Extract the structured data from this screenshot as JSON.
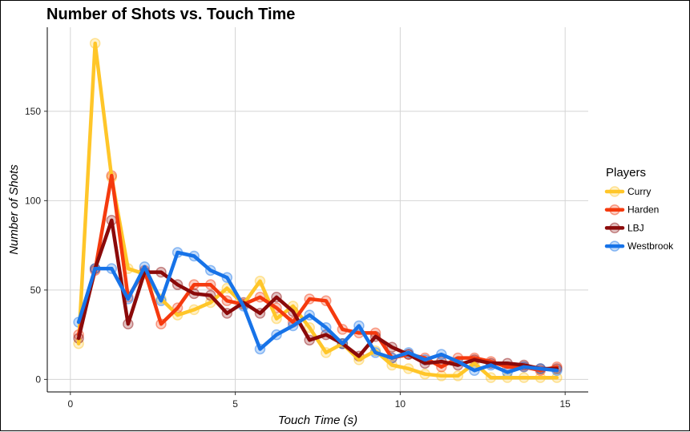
{
  "chart_data": {
    "type": "line",
    "title": "Number of Shots vs. Touch Time",
    "xlabel": "Touch Time (s)",
    "ylabel": "Number of Shots",
    "xlim": [
      -0.7,
      15.7
    ],
    "ylim": [
      -7,
      197
    ],
    "x_ticks": [
      0,
      5,
      10,
      15
    ],
    "x_tick_labels": [
      "0",
      "5",
      "10",
      "15"
    ],
    "y_ticks": [
      0,
      50,
      100,
      150
    ],
    "y_tick_labels": [
      "0",
      "50",
      "100",
      "150"
    ],
    "grid": true,
    "legend_title": "Players",
    "legend_position": "right",
    "x": [
      0.25,
      0.75,
      1.25,
      1.75,
      2.25,
      2.75,
      3.25,
      3.75,
      4.25,
      4.75,
      5.25,
      5.75,
      6.25,
      6.75,
      7.25,
      7.75,
      8.25,
      8.75,
      9.25,
      9.75,
      10.25,
      10.75,
      11.25,
      11.75,
      12.25,
      12.75,
      13.25,
      13.75,
      14.25,
      14.75
    ],
    "series": [
      {
        "name": "Curry",
        "color": "#FFC629",
        "values": [
          20,
          188,
          113,
          62,
          59,
          45,
          36,
          39,
          43,
          51,
          42,
          55,
          34,
          41,
          29,
          15,
          20,
          11,
          16,
          8,
          6,
          3,
          2,
          2,
          9,
          1,
          1,
          1,
          1,
          1
        ]
      },
      {
        "name": "Harden",
        "color": "#F53A0E",
        "values": [
          25,
          61,
          114,
          46,
          61,
          31,
          40,
          53,
          53,
          44,
          42,
          46,
          40,
          32,
          45,
          44,
          28,
          26,
          26,
          12,
          14,
          12,
          7,
          12,
          12,
          10,
          7,
          7,
          5,
          7
        ]
      },
      {
        "name": "LBJ",
        "color": "#8B0A0A",
        "values": [
          23,
          62,
          89,
          31,
          60,
          60,
          53,
          48,
          47,
          37,
          43,
          37,
          46,
          38,
          22,
          25,
          20,
          13,
          24,
          18,
          14,
          9,
          10,
          8,
          11,
          9,
          9,
          8,
          6,
          6
        ]
      },
      {
        "name": "Westbrook",
        "color": "#1773E8",
        "values": [
          32,
          62,
          62,
          45,
          63,
          44,
          71,
          69,
          61,
          57,
          41,
          17,
          25,
          30,
          36,
          29,
          20,
          30,
          15,
          12,
          15,
          11,
          14,
          10,
          5,
          8,
          4,
          7,
          6,
          5
        ]
      }
    ]
  }
}
